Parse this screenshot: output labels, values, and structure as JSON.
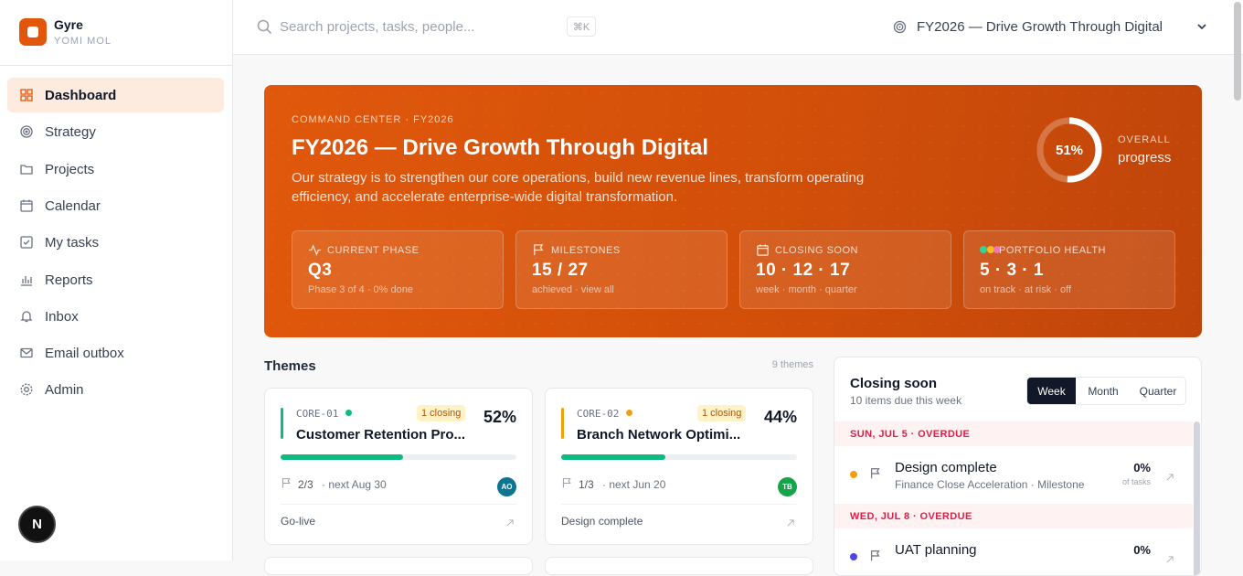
{
  "sidebar": {
    "brand": {
      "name": "Gyre",
      "user": "YOMI MOL"
    },
    "nav": [
      {
        "label": "Dashboard",
        "active": true
      },
      {
        "label": "Strategy",
        "active": false
      },
      {
        "label": "Projects",
        "active": false
      },
      {
        "label": "Calendar",
        "active": false
      },
      {
        "label": "My tasks",
        "active": false
      },
      {
        "label": "Reports",
        "active": false
      },
      {
        "label": "Inbox",
        "active": false
      },
      {
        "label": "Email outbox",
        "active": false
      },
      {
        "label": "Admin",
        "active": false
      }
    ],
    "avatar": "N"
  },
  "topbar": {
    "search_placeholder": "Search projects, tasks, people...",
    "shortcut": "⌘K",
    "strategy": "FY2026 — Drive Growth Through Digital"
  },
  "hero": {
    "eyebrow": "COMMAND CENTER · FY2026",
    "title": "FY2026 — Drive Growth Through Digital",
    "description": "Our strategy is to strengthen our core operations, build new revenue lines, transform operating efficiency, and accelerate enterprise-wide digital transformation.",
    "progress": {
      "value": 51,
      "label": "51%"
    },
    "progress_caption_top": "OVERALL",
    "progress_caption": "progress",
    "stats": [
      {
        "label": "CURRENT PHASE",
        "value": "Q3",
        "note": "Phase 3 of 4 · 0% done"
      },
      {
        "label": "MILESTONES",
        "value": "15 / 27",
        "note": "achieved · view all"
      },
      {
        "label": "CLOSING SOON",
        "value": "10 · 12 · 17",
        "note": "week · month · quarter"
      },
      {
        "label": "PORTFOLIO HEALTH",
        "value": "5 · 3 · 1",
        "note": "on track · at risk · off"
      }
    ]
  },
  "themes": {
    "title": "Themes",
    "count": "9 themes",
    "cards": [
      {
        "code": "CORE-01",
        "status_color": "#10b981",
        "closing": "1 closing",
        "title": "Customer Retention Pro...",
        "progress": {
          "value": 52,
          "label": "52%"
        },
        "milestones": "2/3",
        "next": "· next Aug 30",
        "owner": "AO",
        "owner_color": "#0e7490",
        "stage": "Go-live"
      },
      {
        "code": "CORE-02",
        "status_color": "#f59e0b",
        "closing": "1 closing",
        "title": "Branch Network Optimi...",
        "progress": {
          "value": 44,
          "label": "44%"
        },
        "milestones": "1/3",
        "next": "· next Jun 20",
        "owner": "TB",
        "owner_color": "#16a34a",
        "stage": "Design complete"
      }
    ]
  },
  "closing_soon": {
    "title": "Closing soon",
    "subtitle": "10 items due this week",
    "tabs": [
      {
        "label": "Week",
        "active": true
      },
      {
        "label": "Month",
        "active": false
      },
      {
        "label": "Quarter",
        "active": false
      }
    ],
    "groups": [
      {
        "heading": "SUN, JUL 5 · OVERDUE",
        "items": [
          {
            "title": "Design complete",
            "meta": "Finance Close Acceleration · Milestone",
            "percent": "0%",
            "percent_caption": "of tasks",
            "dot_color": "#f59e0b"
          }
        ]
      },
      {
        "heading": "WED, JUL 8 · OVERDUE",
        "items": [
          {
            "title": "UAT planning",
            "percent": "0%",
            "dot_color": "#4f46e5"
          }
        ]
      }
    ]
  }
}
